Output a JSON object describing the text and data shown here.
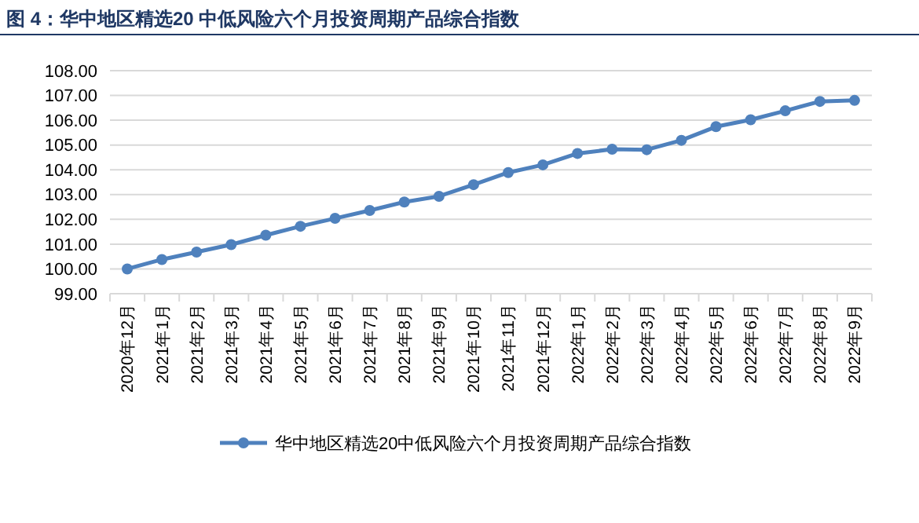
{
  "chart_data": {
    "type": "line",
    "title": "图 4：华中地区精选20 中低风险六个月投资周期产品综合指数",
    "categories": [
      "2020年12月",
      "2021年1月",
      "2021年2月",
      "2021年3月",
      "2021年4月",
      "2021年5月",
      "2021年6月",
      "2021年7月",
      "2021年8月",
      "2021年9月",
      "2021年10月",
      "2021年11月",
      "2021年12月",
      "2022年1月",
      "2022年2月",
      "2022年3月",
      "2022年4月",
      "2022年5月",
      "2022年6月",
      "2022年7月",
      "2022年8月",
      "2022年9月"
    ],
    "series": [
      {
        "name": "华中地区精选20中低风险六个月投资周期产品综合指数",
        "color": "#4f81bd",
        "values": [
          100.0,
          100.38,
          100.68,
          100.98,
          101.36,
          101.72,
          102.04,
          102.36,
          102.7,
          102.93,
          103.4,
          103.89,
          104.2,
          104.66,
          104.83,
          104.81,
          105.19,
          105.74,
          106.02,
          106.38,
          106.76,
          106.8
        ]
      }
    ],
    "ylim": [
      99,
      108
    ],
    "yticks": [
      {
        "value": 99,
        "label": "99.00"
      },
      {
        "value": 100,
        "label": "100.00"
      },
      {
        "value": 101,
        "label": "101.00"
      },
      {
        "value": 102,
        "label": "102.00"
      },
      {
        "value": 103,
        "label": "103.00"
      },
      {
        "value": 104,
        "label": "104.00"
      },
      {
        "value": 105,
        "label": "105.00"
      },
      {
        "value": 106,
        "label": "106.00"
      },
      {
        "value": 107,
        "label": "107.00"
      },
      {
        "value": 108,
        "label": "108.00"
      }
    ],
    "grid": "y",
    "legend": "bottom",
    "marker": "circle",
    "line_style": "solid"
  }
}
